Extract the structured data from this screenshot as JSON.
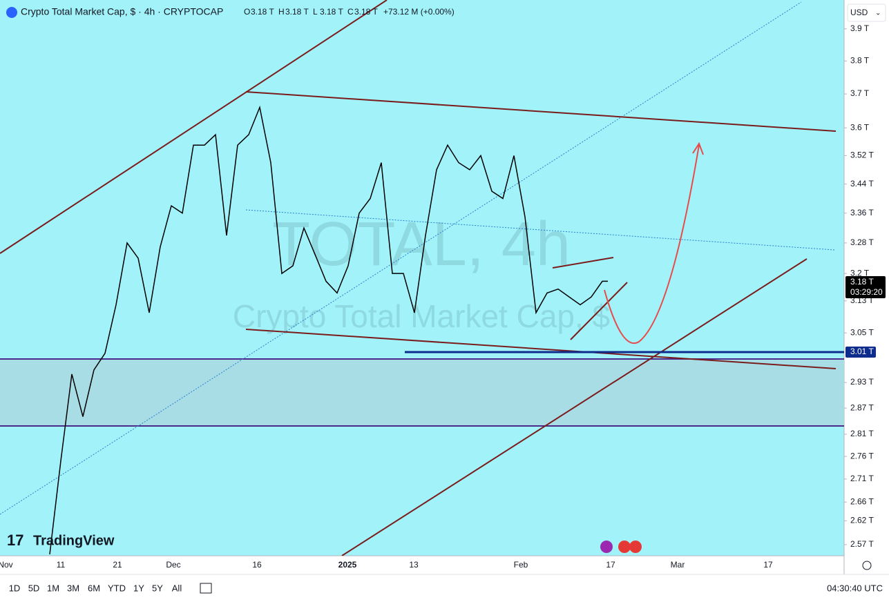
{
  "header": {
    "title": "Crypto Total Market Cap, $ · 4h · CRYPTOCAP",
    "ohlc": [
      {
        "k": "O",
        "v": "3.18 T"
      },
      {
        "k": "H",
        "v": "3.18 T"
      },
      {
        "k": "L",
        "v": "3.18 T"
      },
      {
        "k": "C",
        "v": "3.18 T"
      }
    ],
    "change": "+73.12 M (+0.00%)"
  },
  "watermark": {
    "symbol": "TOTAL, 4h",
    "name": "Crypto Total Market Cap, $"
  },
  "logo": "TradingView",
  "currency": "USD",
  "price": {
    "log": true,
    "ylim": [
      2.547,
      3.992
    ],
    "xlim": [
      -1,
      151.75
    ],
    "yticks": [
      {
        "value": 3.9,
        "label": "3.9 T"
      },
      {
        "value": 3.8,
        "label": "3.8 T"
      },
      {
        "value": 3.7,
        "label": "3.7 T"
      },
      {
        "value": 3.6,
        "label": "3.6 T"
      },
      {
        "value": 3.52,
        "label": "3.52 T"
      },
      {
        "value": 3.44,
        "label": "3.44 T"
      },
      {
        "value": 3.36,
        "label": "3.36 T"
      },
      {
        "value": 3.28,
        "label": "3.28 T"
      },
      {
        "value": 3.2,
        "label": "3.2 T"
      },
      {
        "value": 3.13,
        "label": "3.13 T"
      },
      {
        "value": 3.05,
        "label": "3.05 T"
      },
      {
        "value": 2.93,
        "label": "2.93 T"
      },
      {
        "value": 2.87,
        "label": "2.87 T"
      },
      {
        "value": 2.81,
        "label": "2.81 T"
      },
      {
        "value": 2.76,
        "label": "2.76 T"
      },
      {
        "value": 2.71,
        "label": "2.71 T"
      },
      {
        "value": 2.66,
        "label": "2.66 T"
      },
      {
        "value": 2.62,
        "label": "2.62 T"
      },
      {
        "value": 2.57,
        "label": "2.57 T"
      }
    ],
    "x": [
      8,
      10,
      12,
      14,
      16,
      18,
      20,
      22,
      24,
      26,
      28,
      30,
      32,
      34,
      36,
      38,
      40,
      42,
      44,
      46,
      48,
      50,
      52,
      54,
      56,
      58,
      60,
      62,
      64,
      66,
      68,
      70,
      72,
      74,
      76,
      78,
      80,
      82,
      84,
      86,
      88,
      90,
      92,
      94,
      96,
      98,
      100,
      102,
      104,
      106,
      108,
      109
    ],
    "values": [
      2.55,
      2.75,
      2.95,
      2.85,
      2.96,
      3.0,
      3.12,
      3.28,
      3.24,
      3.1,
      3.27,
      3.38,
      3.36,
      3.55,
      3.55,
      3.58,
      3.3,
      3.55,
      3.58,
      3.66,
      3.5,
      3.2,
      3.22,
      3.32,
      3.25,
      3.18,
      3.15,
      3.22,
      3.36,
      3.4,
      3.5,
      3.2,
      3.2,
      3.1,
      3.3,
      3.48,
      3.55,
      3.5,
      3.48,
      3.52,
      3.42,
      3.4,
      3.52,
      3.35,
      3.1,
      3.15,
      3.16,
      3.14,
      3.12,
      3.14,
      3.18,
      3.18
    ],
    "color": "#000000"
  },
  "time_axis": [
    "Nov",
    "11",
    "21",
    "Dec",
    "16",
    "2025",
    "13",
    "Feb",
    "17",
    "Mar",
    "17"
  ],
  "tags": {
    "last": "3.18 T",
    "countdown": "03:29:20",
    "level": "3.01 T"
  },
  "toolbar": [
    "1D",
    "5D",
    "1M",
    "3M",
    "6M",
    "YTD",
    "1Y",
    "5Y",
    "All"
  ],
  "clock": "04:30:40 UTC"
}
